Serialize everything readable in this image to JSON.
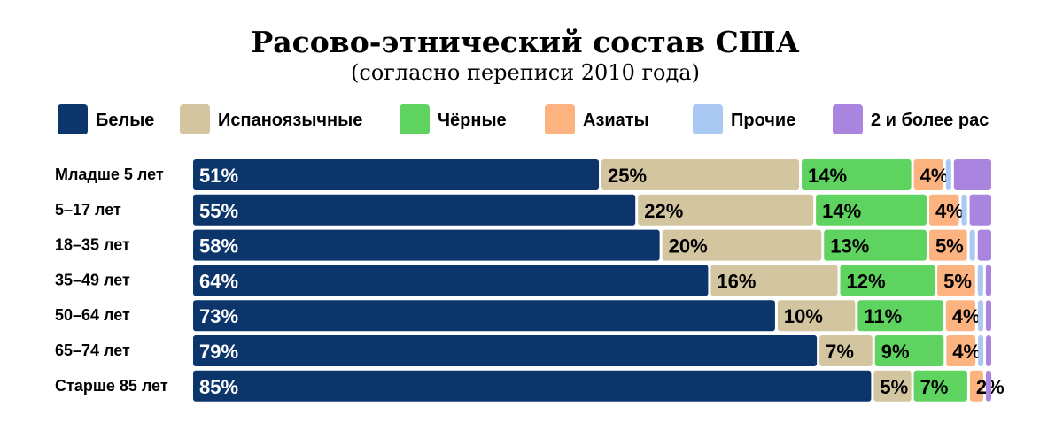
{
  "chart_data": {
    "type": "bar",
    "orientation": "horizontal",
    "stacked": true,
    "normalized": true,
    "title": "Расово-этнический состав США",
    "subtitle": "(согласно переписи 2010 года)",
    "categories": [
      "Младше 5 лет",
      "5–17 лет",
      "18–35 лет",
      "35–49 лет",
      "50–64 лет",
      "65–74 лет",
      "Старше 85 лет"
    ],
    "series": [
      {
        "name": "Белые",
        "color": "#0b356b",
        "label_color": "#ffffff",
        "values": [
          51,
          55,
          58,
          64,
          73,
          79,
          85
        ],
        "labels": [
          "51%",
          "55%",
          "58%",
          "64%",
          "73%",
          "79%",
          "85%"
        ]
      },
      {
        "name": "Испаноязычные",
        "color": "#d4c5a1",
        "label_color": "#000000",
        "values": [
          25,
          22,
          20,
          16,
          10,
          7,
          5
        ],
        "labels": [
          "25%",
          "22%",
          "20%",
          "16%",
          "10%",
          "7%",
          "5%"
        ]
      },
      {
        "name": "Чёрные",
        "color": "#5fd35f",
        "label_color": "#000000",
        "values": [
          14,
          14,
          13,
          12,
          11,
          9,
          7
        ],
        "labels": [
          "14%",
          "14%",
          "13%",
          "12%",
          "11%",
          "9%",
          "7%"
        ]
      },
      {
        "name": "Азиаты",
        "color": "#fdb380",
        "label_color": "#000000",
        "values": [
          4,
          4,
          5,
          5,
          4,
          4,
          2
        ],
        "labels": [
          "4%",
          "4%",
          "5%",
          "5%",
          "4%",
          "4%",
          "2%"
        ]
      },
      {
        "name": "Прочие",
        "color": "#a9c8f2",
        "label_color": "#000000",
        "values": [
          1,
          1,
          1,
          1,
          1,
          1,
          0
        ],
        "labels": [
          "",
          "",
          "",
          "",
          "",
          "",
          ""
        ]
      },
      {
        "name": "2 и более рас",
        "color": "#a985e0",
        "label_color": "#000000",
        "values": [
          5,
          3,
          2,
          1,
          1,
          1,
          1
        ],
        "labels": [
          "",
          "",
          "",
          "",
          "",
          "",
          ""
        ]
      }
    ],
    "xlim": [
      0,
      100
    ],
    "legend_position": "top",
    "grid": false
  }
}
